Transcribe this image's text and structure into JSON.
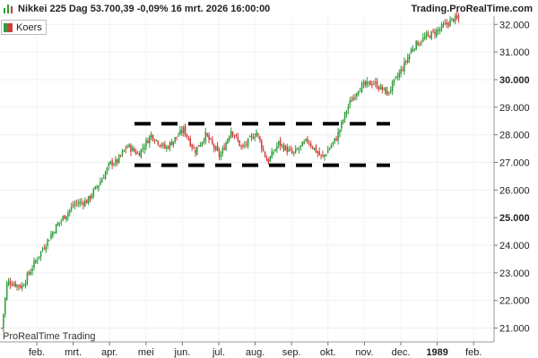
{
  "header": {
    "title": "Nikkei 225 Dag 53.700,39 -0,09% 16 mrt. 2026 16:00:00",
    "source": "Trading.ProRealTime.com"
  },
  "legend": {
    "label": "Koers"
  },
  "watermark": "ProRealTime Trading",
  "chart_data": {
    "type": "candlestick",
    "title": "Nikkei 225 Dag 53.700,39 -0,09% 16 mrt. 2026 16:00:00",
    "ylim": [
      20500,
      32300
    ],
    "y_ticks": [
      "21.000",
      "22.000",
      "23.000",
      "24.000",
      "25.000",
      "26.000",
      "27.000",
      "28.000",
      "29.000",
      "30.000",
      "31.000",
      "32.000"
    ],
    "y_tick_values": [
      21000,
      22000,
      23000,
      24000,
      25000,
      26000,
      27000,
      28000,
      29000,
      30000,
      31000,
      32000
    ],
    "y_major_ticks": [
      "25.000",
      "30.000"
    ],
    "x_ticks": [
      "feb.",
      "mrt.",
      "apr.",
      "mei",
      "jun.",
      "jul.",
      "aug.",
      "sep.",
      "okt.",
      "nov.",
      "dec.",
      "1989",
      "feb."
    ],
    "x_major_ticks": [
      "1989"
    ],
    "colors": {
      "up": "#2e9d3a",
      "down": "#d23b3b",
      "levels": "#000000"
    },
    "key_points": [
      {
        "month": 0.0,
        "close": 21000
      },
      {
        "month": 0.15,
        "close": 22700
      },
      {
        "month": 0.55,
        "close": 22500
      },
      {
        "month": 1.0,
        "close": 23600
      },
      {
        "month": 1.5,
        "close": 24700
      },
      {
        "month": 2.0,
        "close": 25500
      },
      {
        "month": 2.35,
        "close": 25600
      },
      {
        "month": 2.7,
        "close": 26300
      },
      {
        "month": 3.0,
        "close": 27000
      },
      {
        "month": 3.15,
        "close": 27000
      },
      {
        "month": 3.45,
        "close": 27600
      },
      {
        "month": 3.75,
        "close": 27300
      },
      {
        "month": 4.1,
        "close": 28000
      },
      {
        "month": 4.5,
        "close": 27500
      },
      {
        "month": 5.0,
        "close": 28200
      },
      {
        "month": 5.3,
        "close": 27400
      },
      {
        "month": 5.6,
        "close": 28000
      },
      {
        "month": 6.0,
        "close": 27200
      },
      {
        "month": 6.3,
        "close": 28200
      },
      {
        "month": 6.6,
        "close": 27500
      },
      {
        "month": 7.0,
        "close": 28100
      },
      {
        "month": 7.3,
        "close": 27000
      },
      {
        "month": 7.6,
        "close": 27700
      },
      {
        "month": 8.0,
        "close": 27300
      },
      {
        "month": 8.4,
        "close": 27800
      },
      {
        "month": 8.8,
        "close": 27150
      },
      {
        "month": 9.2,
        "close": 27900
      },
      {
        "month": 9.5,
        "close": 29000
      },
      {
        "month": 9.8,
        "close": 29700
      },
      {
        "month": 10.2,
        "close": 29900
      },
      {
        "month": 10.6,
        "close": 29500
      },
      {
        "month": 11.0,
        "close": 30400
      },
      {
        "month": 11.3,
        "close": 31200
      },
      {
        "month": 11.6,
        "close": 31500
      },
      {
        "month": 12.0,
        "close": 31800
      },
      {
        "month": 12.4,
        "close": 32200
      }
    ],
    "resistance_level": 28400,
    "support_level": 26900
  }
}
